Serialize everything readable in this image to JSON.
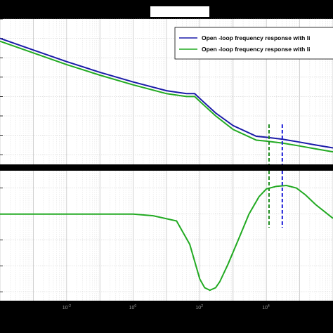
{
  "chart_data": {
    "type": "line",
    "x_scale": "log",
    "xlim": [
      0.0001,
      1000000
    ],
    "x_tick_labels": [
      "10^-2",
      "10^0",
      "10^2",
      "10^4"
    ],
    "grid": true,
    "legend_position": "top-right",
    "title": "",
    "colors": {
      "series_blue": "#1a1aa8",
      "series_green": "#22aa22",
      "marker_blue": "#1a1ad8",
      "marker_green": "#1e8c1e"
    },
    "subplots": [
      {
        "name": "magnitude",
        "xlabel": "",
        "ylabel": "",
        "series": [
          {
            "name": "Open -loop frequency response with li",
            "x": [
              0.0001,
              0.001,
              0.01,
              0.1,
              1,
              10,
              40,
              70,
              100,
              300,
              1000,
              5000,
              10000,
              30000,
              100000,
              300000,
              1000000
            ],
            "values": [
              100,
              88,
              76,
              65,
              55,
              46,
              43,
              43,
              38,
              23,
              10,
              -1,
              -2,
              -4,
              -7,
              -10,
              -13
            ]
          },
          {
            "name": "Open -loop frequency response with li",
            "x": [
              0.0001,
              0.001,
              0.01,
              0.1,
              1,
              10,
              40,
              70,
              100,
              300,
              1000,
              5000,
              10000,
              30000,
              100000,
              300000,
              1000000
            ],
            "values": [
              97,
              85,
              73,
              62,
              52,
              43,
              40,
              40,
              35,
              20,
              6,
              -5,
              -6,
              -8,
              -11,
              -14,
              -17
            ]
          }
        ]
      },
      {
        "name": "phase",
        "xlabel": "",
        "ylabel": "",
        "series": [
          {
            "name": "Open -loop frequency response with li",
            "x": [
              0.0001,
              0.001,
              0.01,
              0.1,
              1,
              4,
              20,
              50,
              100,
              140,
              200,
              300,
              400,
              700,
              1500,
              3000,
              6000,
              10000,
              20000,
              40000,
              80000,
              150000,
              300000,
              1000000
            ],
            "values": [
              -90,
              -90,
              -90,
              -90,
              -90,
              -92,
              -98,
              -125,
              -165,
              -175,
              -178,
              -175,
              -168,
              -148,
              -118,
              -90,
              -70,
              -61,
              -58,
              -57,
              -60,
              -68,
              -79,
              -95
            ]
          }
        ]
      }
    ],
    "vertical_markers": [
      {
        "x": 12000,
        "style": "dashed"
      },
      {
        "x": 30000,
        "style": "dashed"
      }
    ]
  }
}
